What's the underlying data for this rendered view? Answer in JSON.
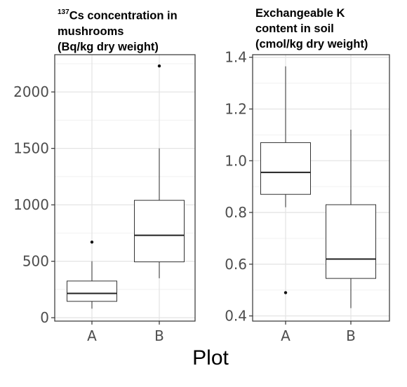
{
  "xlabel": "Plot",
  "chart_data": [
    {
      "type": "box",
      "title_sup": "137",
      "title_lines": [
        "Cs concentration in",
        "mushrooms",
        "(Bq/kg dry weight)"
      ],
      "categories": [
        "A",
        "B"
      ],
      "ylim": [
        -30,
        2330
      ],
      "yticks": [
        0,
        500,
        1000,
        1500,
        2000
      ],
      "ytick_labels": [
        "0",
        "500",
        "1000",
        "1500",
        "2000"
      ],
      "grid": true,
      "boxes": [
        {
          "category": "A",
          "whisker_low": 80,
          "q1": 145,
          "median": 215,
          "q3": 325,
          "whisker_high": 500,
          "outliers": [
            670
          ]
        },
        {
          "category": "B",
          "whisker_low": 350,
          "q1": 495,
          "median": 730,
          "q3": 1040,
          "whisker_high": 1500,
          "outliers": [
            2230
          ]
        }
      ]
    },
    {
      "type": "box",
      "title_sup": "",
      "title_lines": [
        "Exchangeable K",
        "content in soil",
        "(cmol/kg dry weight)"
      ],
      "categories": [
        "A",
        "B"
      ],
      "ylim": [
        0.38,
        1.41
      ],
      "yticks": [
        0.4,
        0.6,
        0.8,
        1.0,
        1.2,
        1.4
      ],
      "ytick_labels": [
        "0.4",
        "0.6",
        "0.8",
        "1.0",
        "1.2",
        "1.4"
      ],
      "grid": true,
      "boxes": [
        {
          "category": "A",
          "whisker_low": 0.82,
          "q1": 0.87,
          "median": 0.955,
          "q3": 1.07,
          "whisker_high": 1.365,
          "outliers": [
            0.49
          ]
        },
        {
          "category": "B",
          "whisker_low": 0.43,
          "q1": 0.545,
          "median": 0.62,
          "q3": 0.83,
          "whisker_high": 1.12,
          "outliers": []
        }
      ]
    }
  ]
}
